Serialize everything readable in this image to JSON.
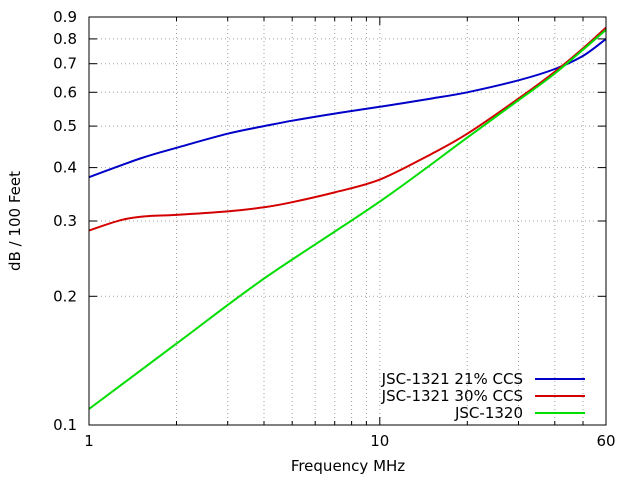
{
  "chart_data": {
    "type": "line",
    "title": "",
    "xlabel": "Frequency MHz",
    "ylabel": "dB / 100 Feet",
    "xscale": "log",
    "yscale": "log",
    "xlim": [
      1,
      60
    ],
    "ylim": [
      0.1,
      0.9
    ],
    "x_ticks": [
      {
        "value": 1,
        "label": "1"
      },
      {
        "value": 10,
        "label": "10"
      },
      {
        "value": 60,
        "label": "60"
      }
    ],
    "y_ticks": [
      {
        "value": 0.1,
        "label": "0.1"
      },
      {
        "value": 0.2,
        "label": "0.2"
      },
      {
        "value": 0.3,
        "label": "0.3"
      },
      {
        "value": 0.4,
        "label": "0.4"
      },
      {
        "value": 0.5,
        "label": "0.5"
      },
      {
        "value": 0.6,
        "label": "0.6"
      },
      {
        "value": 0.7,
        "label": "0.7"
      },
      {
        "value": 0.8,
        "label": "0.8"
      },
      {
        "value": 0.9,
        "label": "0.9"
      }
    ],
    "x_grid": [
      1,
      2,
      3,
      4,
      5,
      6,
      7,
      8,
      9,
      10,
      20,
      30,
      40,
      50,
      60
    ],
    "y_grid": [
      0.1,
      0.2,
      0.3,
      0.4,
      0.5,
      0.6,
      0.7,
      0.8,
      0.9
    ],
    "grid": true,
    "legend_position": "bottom-right",
    "series": [
      {
        "name": "JSC-1321 21% CCS",
        "color": "#0000c8",
        "x": [
          1,
          1.5,
          2,
          3,
          4,
          5,
          7,
          10,
          15,
          20,
          30,
          40,
          50,
          60
        ],
        "y": [
          0.38,
          0.42,
          0.445,
          0.48,
          0.5,
          0.515,
          0.535,
          0.555,
          0.58,
          0.6,
          0.64,
          0.68,
          0.73,
          0.8
        ]
      },
      {
        "name": "JSC-1321 30% CCS",
        "color": "#d40000",
        "x": [
          1,
          1.3,
          1.6,
          2,
          3,
          4,
          5,
          7,
          10,
          15,
          20,
          30,
          40,
          50,
          60
        ],
        "y": [
          0.285,
          0.302,
          0.308,
          0.31,
          0.316,
          0.323,
          0.332,
          0.35,
          0.375,
          0.43,
          0.48,
          0.58,
          0.67,
          0.76,
          0.85
        ]
      },
      {
        "name": "JSC-1320",
        "color": "#00dd00",
        "x": [
          1,
          2,
          4,
          10,
          20,
          30,
          40,
          60
        ],
        "y": [
          0.109,
          0.155,
          0.22,
          0.333,
          0.47,
          0.575,
          0.664,
          0.84
        ]
      }
    ]
  }
}
